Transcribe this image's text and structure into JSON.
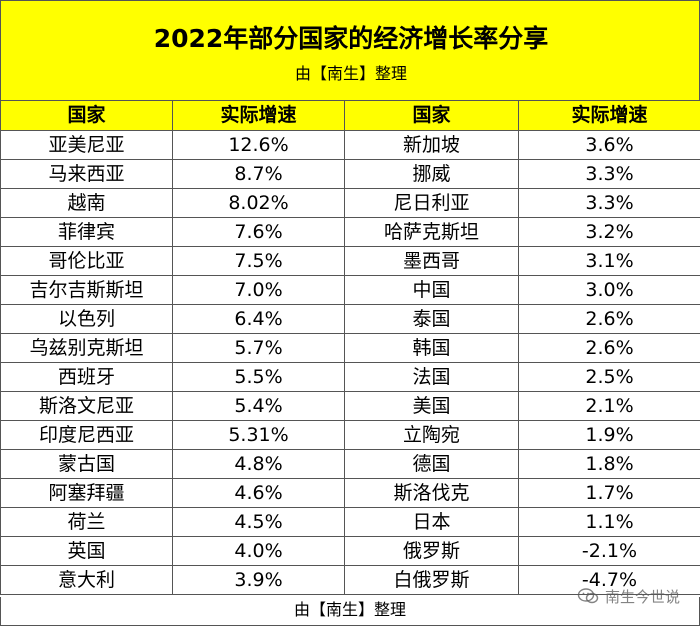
{
  "title": "2022年部分国家的经济增长率分享",
  "subtitle": "由【南生】整理",
  "headers": [
    "国家",
    "实际增速",
    "国家",
    "实际增速"
  ],
  "rows": [
    [
      "亚美尼亚",
      "12.6%",
      "新加坡",
      "3.6%"
    ],
    [
      "马来西亚",
      "8.7%",
      "挪威",
      "3.3%"
    ],
    [
      "越南",
      "8.02%",
      "尼日利亚",
      "3.3%"
    ],
    [
      "菲律宾",
      "7.6%",
      "哈萨克斯坦",
      "3.2%"
    ],
    [
      "哥伦比亚",
      "7.5%",
      "墨西哥",
      "3.1%"
    ],
    [
      "吉尔吉斯斯坦",
      "7.0%",
      "中国",
      "3.0%"
    ],
    [
      "以色列",
      "6.4%",
      "泰国",
      "2.6%"
    ],
    [
      "乌兹别克斯坦",
      "5.7%",
      "韩国",
      "2.6%"
    ],
    [
      "西班牙",
      "5.5%",
      "法国",
      "2.5%"
    ],
    [
      "斯洛文尼亚",
      "5.4%",
      "美国",
      "2.1%"
    ],
    [
      "印度尼西亚",
      "5.31%",
      "立陶宛",
      "1.9%"
    ],
    [
      "蒙古国",
      "4.8%",
      "德国",
      "1.8%"
    ],
    [
      "阿塞拜疆",
      "4.6%",
      "斯洛伐克",
      "1.7%"
    ],
    [
      "荷兰",
      "4.5%",
      "日本",
      "1.1%"
    ],
    [
      "英国",
      "4.0%",
      "俄罗斯",
      "-2.1%"
    ],
    [
      "意大利",
      "3.9%",
      "白俄罗斯",
      "-4.7%"
    ]
  ],
  "footer": "由【南生】整理",
  "watermark": "南生今世说",
  "colors": {
    "header_bg": "#ffff00",
    "border": "#555555"
  }
}
